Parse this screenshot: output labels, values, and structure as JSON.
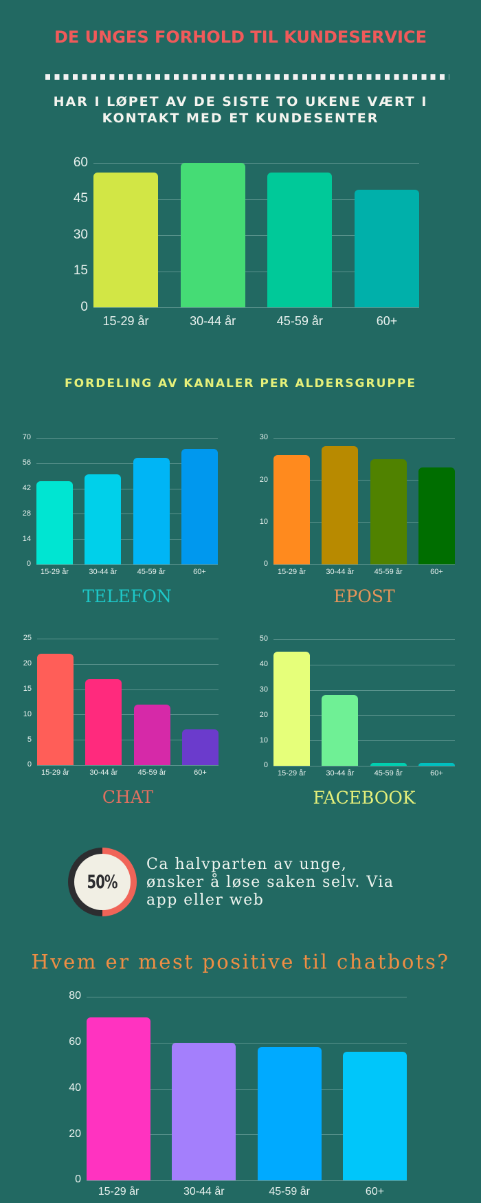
{
  "header": {
    "title": "DE UNGES FORHOLD TIL KUNDESERVICE",
    "subtitle_line1": "HAR I LØPET AV DE SISTE TO UKENE VÆRT I",
    "subtitle_line2": "KONTAKT MED ET KUNDESENTER"
  },
  "channels_section": {
    "title": "FORDELING AV KANALER PER ALDERSGRUPPE"
  },
  "stat": {
    "percent": "50%",
    "text_line1": "Ca halvparten av unge,",
    "text_line2": "ønsker å løse saken selv. Via",
    "text_line3": "app eller web",
    "ring_colors": {
      "filled": "#f06458",
      "empty": "#2d2d30"
    }
  },
  "chatbot_section": {
    "title": "Hvem er mest positive til chatbots?"
  },
  "colors": {
    "background": "#226962",
    "title": "#f05a5a",
    "section_title": "#e6f07a"
  },
  "chart_data": [
    {
      "id": "contact",
      "type": "bar",
      "title": "HAR I LØPET AV DE SISTE TO UKENE VÆRT I KONTAKT MED ET KUNDESENTER",
      "categories": [
        "15-29 år",
        "30-44 år",
        "45-59 år",
        "60+"
      ],
      "values": [
        56,
        60,
        56,
        49
      ],
      "colors": [
        "#d2e645",
        "#45dc75",
        "#00c999",
        "#00b0aa"
      ],
      "yticks": [
        "0",
        "15",
        "30",
        "45",
        "60"
      ],
      "ylim": [
        0,
        60
      ],
      "grid": true,
      "xlabel": "",
      "ylabel": ""
    },
    {
      "id": "telefon",
      "type": "bar",
      "title": "TELEFON",
      "title_color": "#1ec8c8",
      "categories": [
        "15-29 år",
        "30-44 år",
        "45-59 år",
        "60+"
      ],
      "values": [
        46,
        50,
        59,
        64
      ],
      "colors": [
        "#00e5d2",
        "#00d0ea",
        "#00b5f5",
        "#0098ee"
      ],
      "yticks": [
        "0",
        "14",
        "28",
        "42",
        "56",
        "70"
      ],
      "ylim": [
        0,
        70
      ],
      "grid": true
    },
    {
      "id": "epost",
      "type": "bar",
      "title": "EPOST",
      "title_color": "#e8955a",
      "categories": [
        "15-29 år",
        "30-44 år",
        "45-59 år",
        "60+"
      ],
      "values": [
        26,
        28,
        25,
        23
      ],
      "colors": [
        "#ff8a1e",
        "#b88a00",
        "#508200",
        "#006e00"
      ],
      "yticks": [
        "0",
        "10",
        "20",
        "30"
      ],
      "ylim": [
        0,
        30
      ],
      "grid": true
    },
    {
      "id": "chat",
      "type": "bar",
      "title": "CHAT",
      "title_color": "#e07060",
      "categories": [
        "15-29 år",
        "30-44 år",
        "45-59 år",
        "60+"
      ],
      "values": [
        22,
        17,
        12,
        7
      ],
      "colors": [
        "#ff5e58",
        "#ff2a7d",
        "#d629a8",
        "#6b3bcc"
      ],
      "yticks": [
        "0",
        "5",
        "10",
        "15",
        "20",
        "25"
      ],
      "ylim": [
        0,
        25
      ],
      "grid": true
    },
    {
      "id": "facebook",
      "type": "bar",
      "title": "FACEBOOK",
      "title_color": "#e6f07a",
      "categories": [
        "15-29 år",
        "30-44 år",
        "45-59 år",
        "60+"
      ],
      "values": [
        45,
        28,
        1,
        1
      ],
      "colors": [
        "#e6ff7a",
        "#6ff095",
        "#00d0b0",
        "#00c0c0"
      ],
      "yticks": [
        "0",
        "10",
        "20",
        "30",
        "40",
        "50"
      ],
      "ylim": [
        0,
        50
      ],
      "grid": true
    },
    {
      "id": "chatbot",
      "type": "bar",
      "title": "Hvem er mest positive til chatbots?",
      "categories": [
        "15-29 år",
        "30-44 år",
        "45-59 år",
        "60+"
      ],
      "values": [
        71,
        60,
        58,
        56
      ],
      "colors": [
        "#ff33c0",
        "#a47ffc",
        "#00aaff",
        "#00c6fa"
      ],
      "yticks": [
        "0",
        "20",
        "40",
        "60",
        "80"
      ],
      "ylim": [
        0,
        80
      ],
      "grid": true
    }
  ]
}
